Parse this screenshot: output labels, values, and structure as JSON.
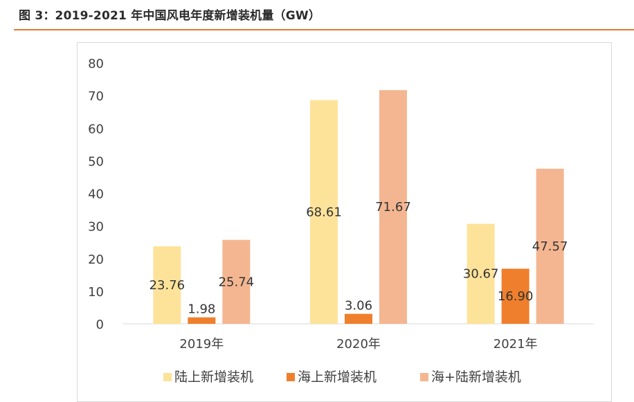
{
  "figure_title": "图 3：2019-2021 年中国风电年度新增装机量（GW）",
  "colors": {
    "accent_rule": "#e07a2e",
    "onshore": "#fde39a",
    "offshore": "#ef7f2c",
    "total": "#f4b691",
    "axis": "#d9d9d9",
    "text": "#404040"
  },
  "chart_data": {
    "type": "bar",
    "title": "",
    "xlabel": "",
    "ylabel": "",
    "ylim": [
      0,
      80
    ],
    "yticks": [
      "0",
      "10",
      "20",
      "30",
      "40",
      "50",
      "60",
      "70",
      "80"
    ],
    "grid": false,
    "legend_position": "bottom",
    "categories": [
      "2019年",
      "2020年",
      "2021年"
    ],
    "series": [
      {
        "name": "陆上新增装机",
        "values": [
          23.76,
          68.61,
          30.67
        ],
        "labels": [
          "23.76",
          "68.61",
          "30.67"
        ],
        "color": "#fde39a"
      },
      {
        "name": "海上新增装机",
        "values": [
          1.98,
          3.06,
          16.9
        ],
        "labels": [
          "1.98",
          "3.06",
          "16.90"
        ],
        "color": "#ef7f2c"
      },
      {
        "name": "海+陆新增装机",
        "values": [
          25.74,
          71.67,
          47.57
        ],
        "labels": [
          "25.74",
          "71.67",
          "47.57"
        ],
        "color": "#f4b691"
      }
    ]
  }
}
